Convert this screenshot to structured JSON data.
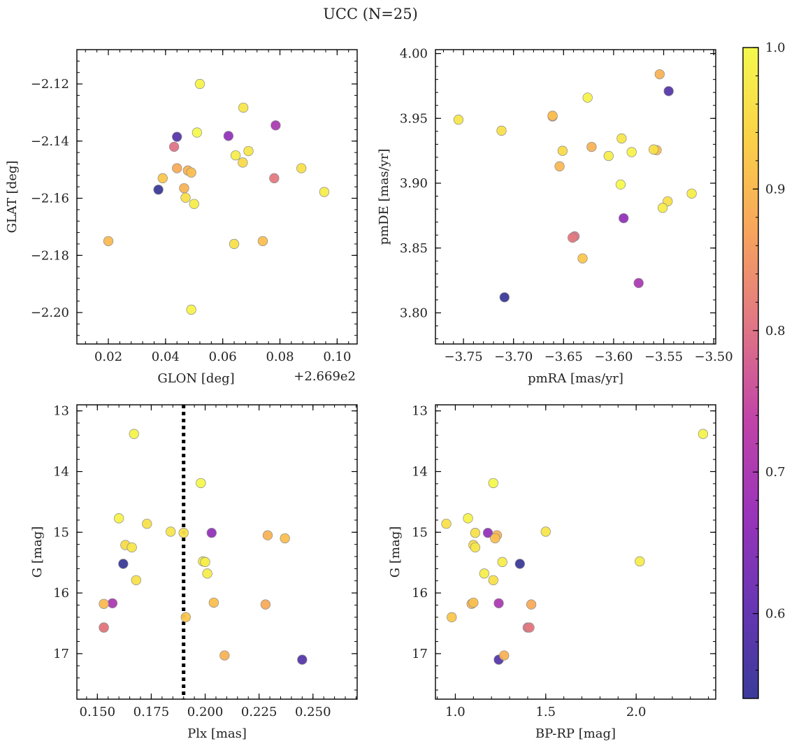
{
  "chart_data": {
    "title": "UCC (N=25)",
    "colorbar": {
      "min": 0.54,
      "max": 1.0,
      "ticks": [
        0.6,
        0.7,
        0.8,
        0.9,
        1.0
      ],
      "tick_labels": [
        "0.6",
        "0.7",
        "0.8",
        "0.9",
        "1.0"
      ],
      "colormap": "plasma",
      "colormap_stops": [
        "#3b3b99",
        "#6836b4",
        "#9b34ba",
        "#c144a8",
        "#e07585",
        "#f7a35d",
        "#fbd048",
        "#f4f94d"
      ]
    },
    "stars": [
      {
        "glon_off": 0.02,
        "glat": -2.175,
        "pmra": -3.654,
        "pmde": 3.913,
        "plx": 0.153,
        "g": 16.18,
        "bprp": 1.09,
        "prob": 0.9
      },
      {
        "glon_off": 0.0375,
        "glat": -2.157,
        "pmra": -3.709,
        "pmde": 3.812,
        "plx": 0.162,
        "g": 15.52,
        "bprp": 1.357,
        "prob": 0.54
      },
      {
        "glon_off": 0.039,
        "glat": -2.153,
        "pmra": -3.631,
        "pmde": 3.842,
        "plx": 0.191,
        "g": 16.4,
        "bprp": 0.98,
        "prob": 0.92
      },
      {
        "glon_off": 0.043,
        "glat": -2.142,
        "pmra": -3.639,
        "pmde": 3.859,
        "plx": 0.153,
        "g": 16.57,
        "bprp": 1.4,
        "prob": 0.8
      },
      {
        "glon_off": 0.044,
        "glat": -2.1495,
        "pmra": -3.661,
        "pmde": 3.9515,
        "plx": 0.228,
        "g": 16.19,
        "bprp": 1.42,
        "prob": 0.88
      },
      {
        "glon_off": 0.044,
        "glat": -2.1385,
        "pmra": -3.545,
        "pmde": 3.971,
        "plx": 0.245,
        "g": 17.1,
        "bprp": 1.24,
        "prob": 0.58
      },
      {
        "glon_off": 0.0465,
        "glat": -2.1565,
        "pmra": -3.622,
        "pmde": 3.928,
        "plx": 0.209,
        "g": 17.03,
        "bprp": 1.27,
        "prob": 0.89
      },
      {
        "glon_off": 0.047,
        "glat": -2.1598,
        "pmra": -3.712,
        "pmde": 3.9405,
        "plx": 0.173,
        "g": 14.86,
        "bprp": 0.95,
        "prob": 0.96
      },
      {
        "glon_off": 0.0478,
        "glat": -2.1503,
        "pmra": -3.554,
        "pmde": 3.984,
        "plx": 0.229,
        "g": 15.05,
        "bprp": 1.23,
        "prob": 0.89
      },
      {
        "glon_off": 0.049,
        "glat": -2.151,
        "pmra": -3.661,
        "pmde": 3.952,
        "plx": 0.237,
        "g": 15.1,
        "bprp": 1.22,
        "prob": 0.91
      },
      {
        "glon_off": 0.049,
        "glat": -2.199,
        "pmra": -3.626,
        "pmde": 3.966,
        "plx": 0.167,
        "g": 13.38,
        "bprp": 2.37,
        "prob": 0.99
      },
      {
        "glon_off": 0.05,
        "glat": -2.162,
        "pmra": -3.605,
        "pmde": 3.921,
        "plx": 0.201,
        "g": 15.68,
        "bprp": 1.16,
        "prob": 0.98
      },
      {
        "glon_off": 0.051,
        "glat": -2.137,
        "pmra": -3.593,
        "pmde": 3.899,
        "plx": 0.198,
        "g": 14.19,
        "bprp": 1.21,
        "prob": 1.0
      },
      {
        "glon_off": 0.052,
        "glat": -2.12,
        "pmra": -3.582,
        "pmde": 3.924,
        "plx": 0.16,
        "g": 14.77,
        "bprp": 1.07,
        "prob": 0.99
      },
      {
        "glon_off": 0.062,
        "glat": -2.1382,
        "pmra": -3.59,
        "pmde": 3.873,
        "plx": 0.203,
        "g": 15.01,
        "bprp": 1.18,
        "prob": 0.66
      },
      {
        "glon_off": 0.064,
        "glat": -2.176,
        "pmra": -3.56,
        "pmde": 3.926,
        "plx": 0.19,
        "g": 15.01,
        "bprp": 1.11,
        "prob": 0.96
      },
      {
        "glon_off": 0.0645,
        "glat": -2.145,
        "pmra": -3.551,
        "pmde": 3.881,
        "plx": 0.199,
        "g": 15.48,
        "bprp": 2.02,
        "prob": 0.98
      },
      {
        "glon_off": 0.067,
        "glat": -2.1475,
        "pmra": -3.651,
        "pmde": 3.925,
        "plx": 0.163,
        "g": 15.21,
        "bprp": 1.1,
        "prob": 0.95
      },
      {
        "glon_off": 0.0672,
        "glat": -2.1283,
        "pmra": -3.755,
        "pmde": 3.949,
        "plx": 0.184,
        "g": 14.99,
        "bprp": 1.5,
        "prob": 0.97
      },
      {
        "glon_off": 0.069,
        "glat": -2.1435,
        "pmra": -3.592,
        "pmde": 3.9345,
        "plx": 0.166,
        "g": 15.25,
        "bprp": 1.11,
        "prob": 0.97
      },
      {
        "glon_off": 0.074,
        "glat": -2.175,
        "pmra": -3.557,
        "pmde": 3.9255,
        "plx": 0.204,
        "g": 16.16,
        "bprp": 1.1,
        "prob": 0.91
      },
      {
        "glon_off": 0.078,
        "glat": -2.153,
        "pmra": -3.641,
        "pmde": 3.858,
        "plx": 0.153,
        "g": 16.57,
        "bprp": 1.41,
        "prob": 0.81
      },
      {
        "glon_off": 0.0785,
        "glat": -2.1345,
        "pmra": -3.575,
        "pmde": 3.823,
        "plx": 0.157,
        "g": 16.17,
        "bprp": 1.24,
        "prob": 0.7
      },
      {
        "glon_off": 0.0875,
        "glat": -2.1495,
        "pmra": -3.546,
        "pmde": 3.886,
        "plx": 0.168,
        "g": 15.79,
        "bprp": 1.21,
        "prob": 0.96
      },
      {
        "glon_off": 0.0955,
        "glat": -2.1578,
        "pmra": -3.522,
        "pmde": 3.892,
        "plx": 0.2,
        "g": 15.49,
        "bprp": 1.26,
        "prob": 0.98
      }
    ],
    "panels": [
      {
        "id": "glon-glat",
        "type": "scatter",
        "x": "glon_off",
        "y": "glat",
        "xlabel": "GLON [deg]",
        "ylabel": "GLAT [deg]",
        "xlim": [
          0.009,
          0.107
        ],
        "ylim": [
          -2.211,
          -2.108
        ],
        "y_inverted": false,
        "xticks": [
          0.02,
          0.04,
          0.06,
          0.08,
          0.1
        ],
        "xtick_labels": [
          "0.02",
          "0.04",
          "0.06",
          "0.08",
          "0.10"
        ],
        "yticks": [
          -2.12,
          -2.14,
          -2.16,
          -2.18,
          -2.2
        ],
        "ytick_labels": [
          "−2.12",
          "−2.14",
          "−2.16",
          "−2.18",
          "−2.20"
        ],
        "offset_text": "+2.669e2"
      },
      {
        "id": "pmra-pmde",
        "type": "scatter",
        "x": "pmra",
        "y": "pmde",
        "xlabel": "pmRA [mas/yr]",
        "ylabel": "pmDE [mas/yr]",
        "xlim": [
          -3.778,
          -3.498
        ],
        "ylim": [
          3.776,
          4.003
        ],
        "y_inverted": false,
        "xticks": [
          -3.75,
          -3.7,
          -3.65,
          -3.6,
          -3.55,
          -3.5
        ],
        "xtick_labels": [
          "−3.75",
          "−3.70",
          "−3.65",
          "−3.60",
          "−3.55",
          "−3.50"
        ],
        "yticks": [
          3.8,
          3.85,
          3.9,
          3.95,
          4.0
        ],
        "ytick_labels": [
          "3.80",
          "3.85",
          "3.90",
          "3.95",
          "4.00"
        ],
        "offset_text": ""
      },
      {
        "id": "plx-g",
        "type": "scatter",
        "x": "plx",
        "y": "g",
        "xlabel": "Plx [mas]",
        "ylabel": "G [mag]",
        "xlim": [
          0.1405,
          0.2705
        ],
        "ylim": [
          12.9,
          17.75
        ],
        "y_inverted": true,
        "xticks": [
          0.15,
          0.175,
          0.2,
          0.225,
          0.25
        ],
        "xtick_labels": [
          "0.150",
          "0.175",
          "0.200",
          "0.225",
          "0.250"
        ],
        "yticks": [
          13,
          14,
          15,
          16,
          17
        ],
        "ytick_labels": [
          "13",
          "14",
          "15",
          "16",
          "17"
        ],
        "offset_text": "",
        "vline": 0.19
      },
      {
        "id": "bprp-g",
        "type": "scatter",
        "x": "bprp",
        "y": "g",
        "xlabel": "BP-RP [mag]",
        "ylabel": "G [mag]",
        "xlim": [
          0.89,
          2.44
        ],
        "ylim": [
          12.9,
          17.75
        ],
        "y_inverted": true,
        "xticks": [
          1.0,
          1.5,
          2.0
        ],
        "xtick_labels": [
          "1.0",
          "1.5",
          "2.0"
        ],
        "yticks": [
          13,
          14,
          15,
          16,
          17
        ],
        "ytick_labels": [
          "13",
          "14",
          "15",
          "16",
          "17"
        ],
        "offset_text": ""
      }
    ]
  }
}
